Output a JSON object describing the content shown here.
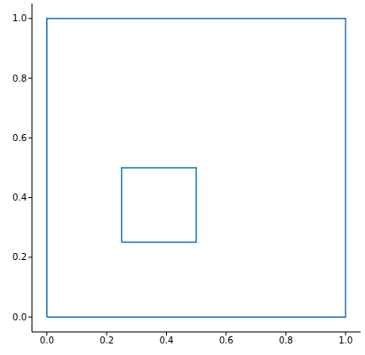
{
  "chart_data": {
    "type": "line",
    "x": [
      0,
      1,
      1,
      0,
      0,
      null,
      0.25,
      0.5,
      0.5,
      0.25,
      0.25
    ],
    "values": [
      0,
      0,
      1,
      1,
      0,
      null,
      0.25,
      0.25,
      0.5,
      0.5,
      0.25
    ],
    "color": "#1f77b4",
    "xlim": [
      -0.05,
      1.05
    ],
    "ylim": [
      -0.05,
      1.05
    ],
    "xticks": [
      {
        "value": 0,
        "label": "0.0"
      },
      0.2,
      0.4,
      0.6,
      0.8,
      {
        "value": 1,
        "label": "1.0"
      }
    ],
    "yticks": [
      {
        "value": 0,
        "label": "0.0"
      },
      0.2,
      0.4,
      0.6,
      0.8,
      {
        "value": 1,
        "label": "1.0"
      }
    ],
    "grid": false
  }
}
